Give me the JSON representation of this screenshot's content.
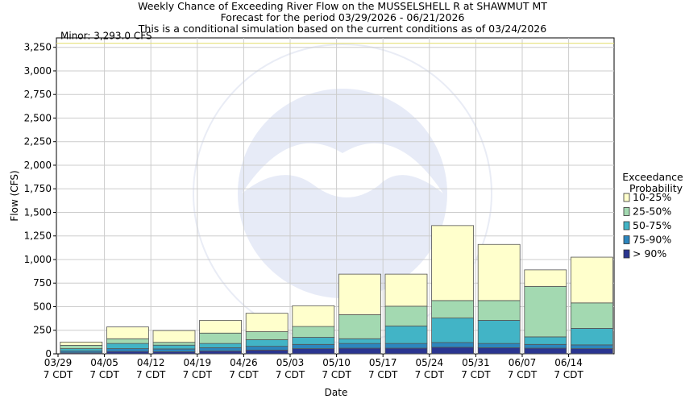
{
  "chart_data": {
    "type": "bar",
    "stacked": true,
    "title": [
      "Weekly Chance of Exceeding River Flow on the MUSSELSHELL R at SHAWMUT MT",
      "Forecast for the period 03/29/2026 - 06/21/2026",
      "This is a conditional simulation based on the current conditions as of 03/24/2026"
    ],
    "xlabel": "Date",
    "ylabel": "Flow (CFS)",
    "ylim": [
      0,
      3350
    ],
    "yticks": [
      0,
      250,
      500,
      750,
      1000,
      1250,
      1500,
      1750,
      2000,
      2250,
      2500,
      2750,
      3000,
      3250
    ],
    "ytick_labels": [
      "0",
      "250",
      "500",
      "750",
      "1,000",
      "1,250",
      "1,500",
      "1,750",
      "2,000",
      "2,250",
      "2,500",
      "2,750",
      "3,000",
      "3,250"
    ],
    "categories": [
      "03/29",
      "04/05",
      "04/12",
      "04/19",
      "04/26",
      "05/03",
      "05/10",
      "05/17",
      "05/24",
      "05/31",
      "06/07",
      "06/14"
    ],
    "tick_sublabel": "7 CDT",
    "threshold": {
      "label": "Minor: 3,293.0 CFS",
      "value": 3293,
      "color": "#e6e07a"
    },
    "legend_title": [
      "Exceedance",
      "Probability"
    ],
    "series": [
      {
        "name": "> 90%",
        "color": "#2a3590",
        "values": [
          10,
          25,
          22,
          30,
          40,
          55,
          60,
          60,
          70,
          65,
          60,
          55
        ]
      },
      {
        "name": "75-90%",
        "color": "#2c86be",
        "values": [
          20,
          30,
          30,
          35,
          40,
          45,
          50,
          50,
          50,
          45,
          40,
          40
        ]
      },
      {
        "name": "50-75%",
        "color": "#42b4c6",
        "values": [
          25,
          55,
          40,
          45,
          70,
          75,
          50,
          185,
          260,
          245,
          80,
          175
        ]
      },
      {
        "name": "25-50%",
        "color": "#a3d9b1",
        "values": [
          35,
          50,
          30,
          110,
          85,
          115,
          255,
          210,
          185,
          210,
          535,
          270
        ]
      },
      {
        "name": "10-25%",
        "color": "#ffffcc",
        "values": [
          35,
          125,
          125,
          135,
          195,
          220,
          430,
          340,
          795,
          595,
          175,
          485
        ]
      }
    ]
  }
}
